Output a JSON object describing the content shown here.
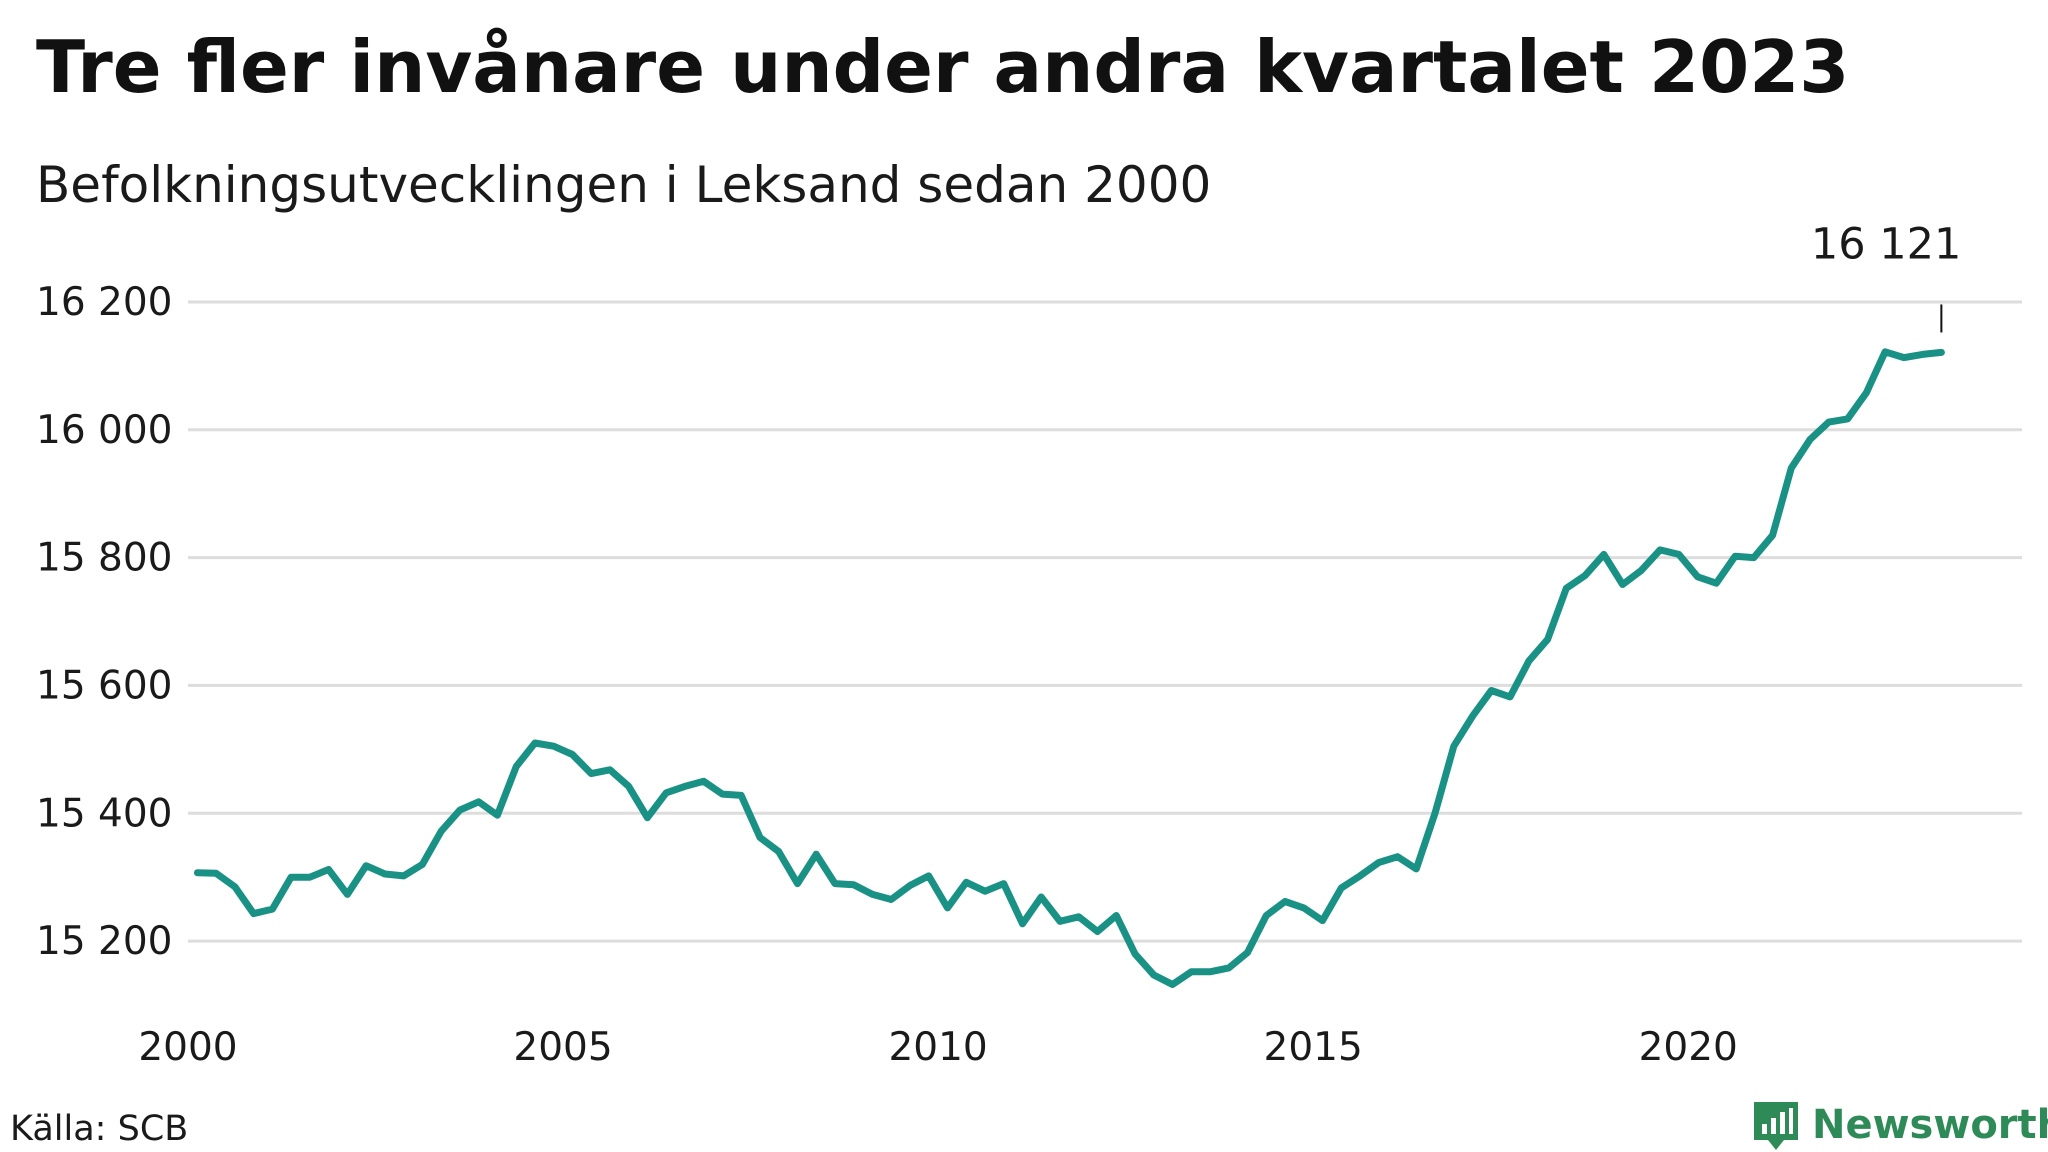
{
  "header": {
    "title": "Tre fler invånare under andra kvartalet 2023",
    "subtitle": "Befolkningsutvecklingen i Leksand sedan 2000"
  },
  "footer": {
    "source": "Källa: SCB",
    "brand": "Newsworthy"
  },
  "colors": {
    "line": "#1a9185",
    "grid": "#dddddd",
    "brand": "#2e8b57"
  },
  "chart_data": {
    "type": "line",
    "title": "Tre fler invånare under andra kvartalet 2023",
    "subtitle": "Befolkningsutvecklingen i Leksand sedan 2000",
    "xlim": [
      2000,
      2024.45
    ],
    "ylim": [
      15100,
      16250
    ],
    "x_ticks": [
      2000,
      2005,
      2010,
      2015,
      2020
    ],
    "x_tick_labels": [
      "2000",
      "2005",
      "2010",
      "2015",
      "2020"
    ],
    "y_ticks": [
      15200,
      15400,
      15600,
      15800,
      16000,
      16200
    ],
    "y_tick_labels": [
      "15 200",
      "15 400",
      "15 600",
      "15 800",
      "16 000",
      "16 200"
    ],
    "grid": true,
    "last_value_label": "16 121",
    "series": [
      {
        "x": [
          "2000 Q1",
          "2000 Q2",
          "2000 Q3",
          "2000 Q4",
          "2001 Q1",
          "2001 Q2",
          "2001 Q3",
          "2001 Q4",
          "2002 Q1",
          "2002 Q2",
          "2002 Q3",
          "2002 Q4",
          "2003 Q1",
          "2003 Q2",
          "2003 Q3",
          "2003 Q4",
          "2004 Q1",
          "2004 Q2",
          "2004 Q3",
          "2004 Q4",
          "2005 Q1",
          "2005 Q2",
          "2005 Q3",
          "2005 Q4",
          "2006 Q1",
          "2006 Q2",
          "2006 Q3",
          "2006 Q4",
          "2007 Q1",
          "2007 Q2",
          "2007 Q3",
          "2007 Q4",
          "2008 Q1",
          "2008 Q2",
          "2008 Q3",
          "2008 Q4",
          "2009 Q1",
          "2009 Q2",
          "2009 Q3",
          "2009 Q4",
          "2010 Q1",
          "2010 Q2",
          "2010 Q3",
          "2010 Q4",
          "2011 Q1",
          "2011 Q2",
          "2011 Q3",
          "2011 Q4",
          "2012 Q1",
          "2012 Q2",
          "2012 Q3",
          "2012 Q4",
          "2013 Q1",
          "2013 Q2",
          "2013 Q3",
          "2013 Q4",
          "2014 Q1",
          "2014 Q2",
          "2014 Q3",
          "2014 Q4",
          "2015 Q1",
          "2015 Q2",
          "2015 Q3",
          "2015 Q4",
          "2016 Q1",
          "2016 Q2",
          "2016 Q3",
          "2016 Q4",
          "2017 Q1",
          "2017 Q2",
          "2017 Q3",
          "2017 Q4",
          "2018 Q1",
          "2018 Q2",
          "2018 Q3",
          "2018 Q4",
          "2019 Q1",
          "2019 Q2",
          "2019 Q3",
          "2019 Q4",
          "2020 Q1",
          "2020 Q2",
          "2020 Q3",
          "2020 Q4",
          "2021 Q1",
          "2021 Q2",
          "2021 Q3",
          "2021 Q4",
          "2022 Q1",
          "2022 Q2",
          "2022 Q3",
          "2022 Q4",
          "2023 Q1",
          "2023 Q2"
        ],
        "values": [
          15307,
          15306,
          15285,
          15243,
          15250,
          15300,
          15300,
          15312,
          15273,
          15318,
          15305,
          15302,
          15320,
          15372,
          15405,
          15418,
          15397,
          15473,
          15510,
          15505,
          15492,
          15462,
          15468,
          15442,
          15393,
          15432,
          15442,
          15450,
          15430,
          15428,
          15362,
          15340,
          15290,
          15336,
          15290,
          15288,
          15273,
          15265,
          15287,
          15302,
          15252,
          15292,
          15278,
          15290,
          15227,
          15269,
          15231,
          15238,
          15215,
          15240,
          15180,
          15147,
          15132,
          15152,
          15152,
          15158,
          15182,
          15240,
          15262,
          15252,
          15232,
          15283,
          15302,
          15323,
          15332,
          15313,
          15400,
          15505,
          15552,
          15592,
          15582,
          15638,
          15672,
          15752,
          15772,
          15805,
          15758,
          15780,
          15812,
          15805,
          15770,
          15760,
          15802,
          15800,
          15835,
          15940,
          15985,
          16012,
          16017,
          16058,
          16122,
          16113,
          16118,
          16121
        ]
      }
    ]
  }
}
